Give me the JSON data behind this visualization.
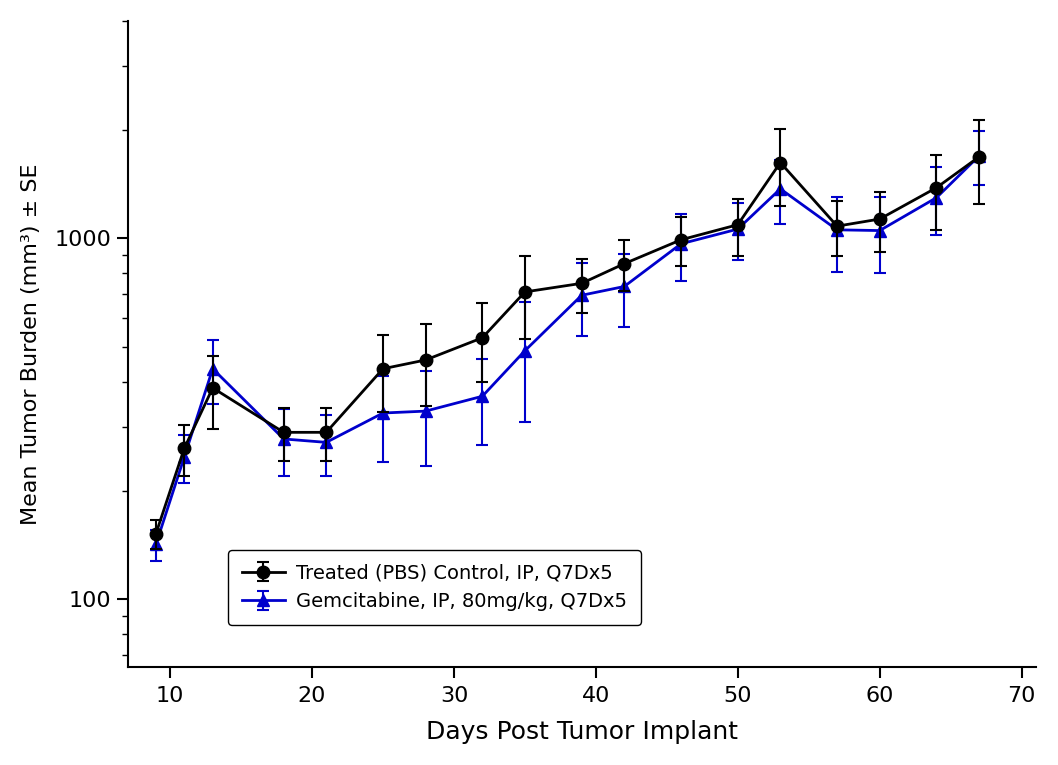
{
  "xlabel": "Days Post Tumor Implant",
  "ylabel": "Mean Tumor Burden (mm³) ± SE",
  "control_label": "Treated (PBS) Control, IP, Q7Dx5",
  "treatment_label": "Gemcitabine, IP, 80mg/kg, Q7Dx5",
  "control_x": [
    9,
    11,
    13,
    18,
    21,
    25,
    28,
    32,
    35,
    39,
    42,
    46,
    50,
    53,
    57,
    60,
    64,
    67
  ],
  "control_y": [
    152,
    262,
    385,
    290,
    290,
    435,
    460,
    530,
    710,
    750,
    850,
    990,
    1090,
    1620,
    1080,
    1130,
    1380,
    1680
  ],
  "control_ye": [
    14,
    42,
    88,
    48,
    48,
    105,
    118,
    130,
    185,
    128,
    138,
    155,
    195,
    390,
    190,
    215,
    325,
    440
  ],
  "treatment_x": [
    9,
    11,
    13,
    18,
    21,
    25,
    28,
    32,
    35,
    39,
    42,
    46,
    50,
    53,
    57,
    60,
    64,
    67
  ],
  "treatment_y": [
    142,
    248,
    435,
    278,
    272,
    328,
    332,
    365,
    488,
    695,
    735,
    965,
    1060,
    1370,
    1055,
    1050,
    1295,
    1690
  ],
  "treatment_ye": [
    14,
    38,
    88,
    58,
    52,
    88,
    98,
    98,
    178,
    158,
    168,
    205,
    188,
    275,
    248,
    248,
    275,
    288
  ],
  "ylim_low": 65,
  "ylim_high": 4000,
  "xlim_low": 7,
  "xlim_high": 71,
  "xticks": [
    10,
    20,
    30,
    40,
    50,
    60,
    70
  ],
  "control_color": "#000000",
  "treatment_color": "#0000cc",
  "linewidth": 2.0,
  "markersize": 9,
  "capsize": 4,
  "elinewidth": 1.5,
  "capthick": 1.5
}
